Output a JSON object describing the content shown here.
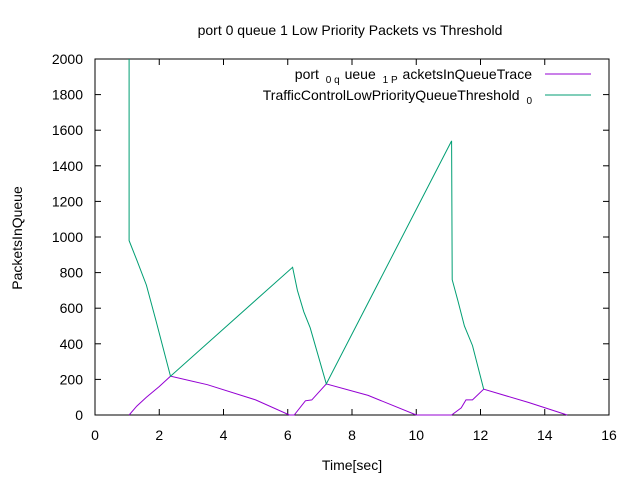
{
  "chart_data": {
    "type": "line",
    "title": "port 0 queue 1 Low Priority Packets vs Threshold",
    "xlabel": "Time[sec]",
    "ylabel": "PacketsInQueue",
    "xlim": [
      0,
      16
    ],
    "ylim": [
      0,
      2000
    ],
    "x_ticks": [
      "0",
      "2",
      "4",
      "6",
      "8",
      "10",
      "12",
      "14",
      "16"
    ],
    "y_ticks": [
      "0",
      "200",
      "400",
      "600",
      "800",
      "1000",
      "1200",
      "1400",
      "1600",
      "1800",
      "2000"
    ],
    "grid": false,
    "legend_position": "top-right",
    "series": [
      {
        "legend": {
          "parts": [
            "port",
            "0 q",
            "ueue",
            "1 P",
            "acketsInQueueTrace"
          ]
        },
        "color": "#9400d3",
        "points": [
          [
            1.06,
            0
          ],
          [
            1.3,
            50
          ],
          [
            1.6,
            100
          ],
          [
            2.0,
            160
          ],
          [
            2.35,
            218
          ],
          [
            3.5,
            170
          ],
          [
            5.0,
            85
          ],
          [
            6.05,
            0
          ],
          [
            6.2,
            0
          ],
          [
            6.55,
            80
          ],
          [
            6.75,
            85
          ],
          [
            7.2,
            175
          ],
          [
            8.5,
            110
          ],
          [
            10.0,
            0
          ],
          [
            10.3,
            0
          ],
          [
            11.1,
            0
          ],
          [
            11.4,
            40
          ],
          [
            11.55,
            85
          ],
          [
            11.75,
            85
          ],
          [
            12.1,
            145
          ],
          [
            13.5,
            70
          ],
          [
            14.7,
            0
          ]
        ]
      },
      {
        "legend": {
          "parts": [
            "TrafficControlLowPriorityQueueThreshold",
            "0"
          ]
        },
        "color": "#009e73",
        "points": [
          [
            1.06,
            2000
          ],
          [
            1.06,
            980
          ],
          [
            1.3,
            870
          ],
          [
            1.6,
            730
          ],
          [
            1.9,
            530
          ],
          [
            2.35,
            218
          ],
          [
            6.15,
            830
          ],
          [
            6.3,
            700
          ],
          [
            6.5,
            580
          ],
          [
            6.7,
            490
          ],
          [
            7.2,
            175
          ],
          [
            11.1,
            1540
          ],
          [
            11.12,
            760
          ],
          [
            11.3,
            640
          ],
          [
            11.5,
            500
          ],
          [
            11.75,
            390
          ],
          [
            12.1,
            145
          ]
        ]
      }
    ]
  }
}
